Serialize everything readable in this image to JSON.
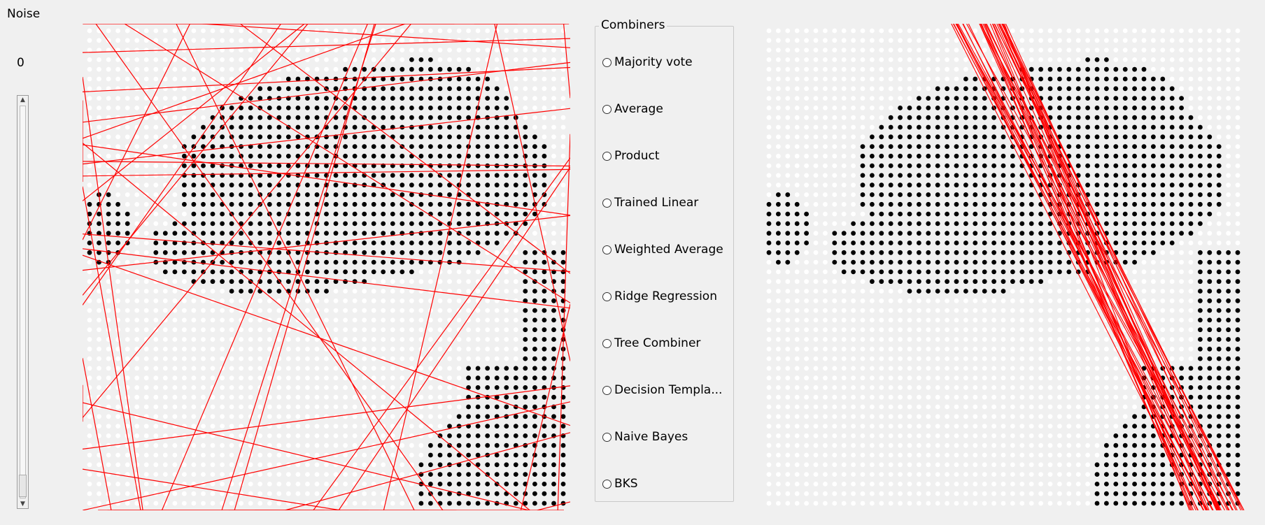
{
  "noise": {
    "label": "Noise",
    "value": "0",
    "slider_level": 0
  },
  "combiners": {
    "title": "Combiners",
    "options": [
      {
        "label": "Majority vote",
        "checked": false
      },
      {
        "label": "Average",
        "checked": false
      },
      {
        "label": "Product",
        "checked": false
      },
      {
        "label": "Trained Linear",
        "checked": false
      },
      {
        "label": "Weighted Average",
        "checked": false
      },
      {
        "label": "Ridge Regression",
        "checked": false
      },
      {
        "label": "Tree Combiner",
        "checked": false
      },
      {
        "label": "Decision Templa...",
        "checked": false
      },
      {
        "label": "Naive Bayes",
        "checked": false
      },
      {
        "label": "BKS",
        "checked": false
      }
    ]
  },
  "colors": {
    "background": "#f0f0f0",
    "class_a": "#000000",
    "class_b": "#ffffff",
    "boundary": "#ff0000"
  }
}
